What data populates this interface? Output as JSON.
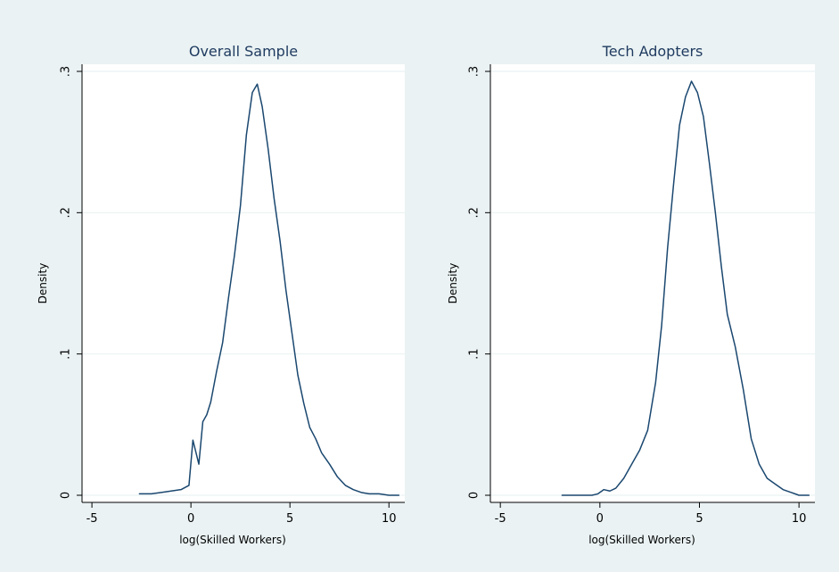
{
  "chart_data": [
    {
      "type": "line",
      "title": "Overall Sample",
      "xlabel": "log(Skilled Workers)",
      "ylabel": "Density",
      "xlim": [
        -5.5,
        10.8
      ],
      "ylim": [
        0,
        0.3
      ],
      "xticks": [
        -5,
        0,
        5,
        10
      ],
      "xtick_labels": [
        "-5",
        "0",
        "5",
        "10"
      ],
      "yticks": [
        0,
        0.1,
        0.2,
        0.3
      ],
      "ytick_labels": [
        "0",
        ".1",
        ".2",
        ".3"
      ],
      "grid": "horizontal",
      "line_color": "#1a476f",
      "series": [
        {
          "x": [
            -2.6,
            -2.0,
            -1.5,
            -1.0,
            -0.5,
            -0.1,
            0.1,
            0.4,
            0.6,
            0.8,
            1.0,
            1.3,
            1.6,
            1.9,
            2.2,
            2.5,
            2.8,
            3.1,
            3.35,
            3.6,
            3.9,
            4.2,
            4.5,
            4.8,
            5.1,
            5.4,
            5.7,
            6.0,
            6.3,
            6.6,
            7.0,
            7.4,
            7.8,
            8.2,
            8.6,
            9.0,
            9.5,
            10.0,
            10.5
          ],
          "y": [
            0.001,
            0.001,
            0.002,
            0.003,
            0.004,
            0.007,
            0.039,
            0.022,
            0.052,
            0.057,
            0.066,
            0.088,
            0.108,
            0.14,
            0.17,
            0.205,
            0.255,
            0.285,
            0.291,
            0.275,
            0.245,
            0.21,
            0.18,
            0.145,
            0.115,
            0.085,
            0.065,
            0.048,
            0.04,
            0.03,
            0.022,
            0.013,
            0.007,
            0.004,
            0.002,
            0.001,
            0.001,
            0.0,
            0.0
          ]
        }
      ]
    },
    {
      "type": "line",
      "title": "Tech Adopters",
      "xlabel": "log(Skilled Workers)",
      "ylabel": "Density",
      "xlim": [
        -5.5,
        10.8
      ],
      "ylim": [
        0,
        0.3
      ],
      "xticks": [
        -5,
        0,
        5,
        10
      ],
      "xtick_labels": [
        "-5",
        "0",
        "5",
        "10"
      ],
      "yticks": [
        0,
        0.1,
        0.2,
        0.3
      ],
      "ytick_labels": [
        "0",
        ".1",
        ".2",
        ".3"
      ],
      "grid": "horizontal",
      "line_color": "#1a476f",
      "series": [
        {
          "x": [
            -1.9,
            -1.0,
            -0.4,
            -0.1,
            0.2,
            0.5,
            0.8,
            1.2,
            1.6,
            2.0,
            2.4,
            2.8,
            3.1,
            3.4,
            3.7,
            4.0,
            4.3,
            4.6,
            4.9,
            5.2,
            5.5,
            5.8,
            6.1,
            6.4,
            6.8,
            7.2,
            7.6,
            8.0,
            8.4,
            8.8,
            9.2,
            9.6,
            10.0,
            10.5
          ],
          "y": [
            0.0,
            0.0,
            0.0,
            0.001,
            0.004,
            0.003,
            0.005,
            0.012,
            0.022,
            0.032,
            0.046,
            0.08,
            0.12,
            0.175,
            0.22,
            0.262,
            0.282,
            0.293,
            0.285,
            0.268,
            0.235,
            0.2,
            0.162,
            0.128,
            0.105,
            0.075,
            0.04,
            0.022,
            0.012,
            0.008,
            0.004,
            0.002,
            0.0,
            0.0
          ]
        }
      ]
    }
  ]
}
